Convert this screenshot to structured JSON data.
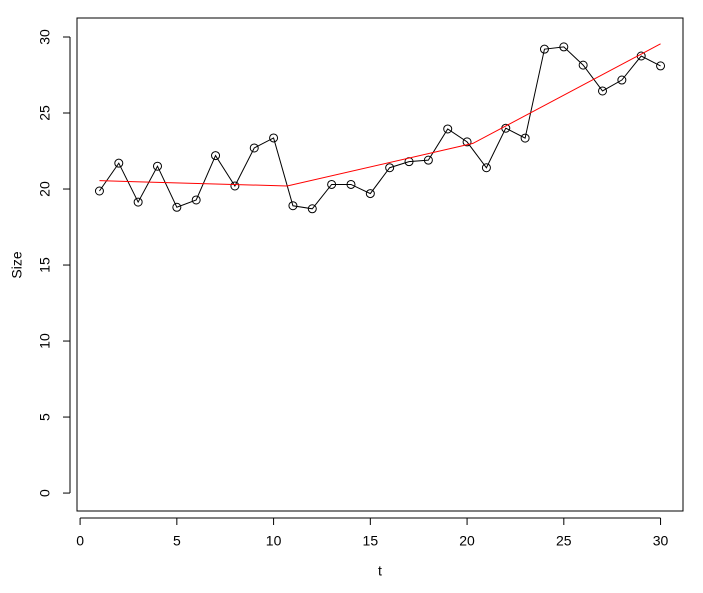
{
  "chart_data": {
    "type": "line",
    "xlabel": "t",
    "ylabel": "Size",
    "series": [
      {
        "x": [
          1,
          2,
          3,
          4,
          5,
          6,
          7,
          8,
          9,
          10,
          11,
          12,
          13,
          14,
          15,
          16,
          17,
          18,
          19,
          20,
          21,
          22,
          23,
          24,
          25,
          26,
          27,
          28,
          29,
          30
        ],
        "values": [
          19.87,
          21.7,
          19.14,
          21.5,
          18.8,
          19.28,
          22.2,
          20.2,
          22.7,
          23.36,
          18.9,
          18.7,
          20.3,
          20.3,
          19.7,
          21.4,
          21.8,
          21.9,
          23.95,
          23.1,
          21.4,
          24.0,
          23.35,
          29.2,
          29.35,
          28.15,
          26.45,
          27.17,
          28.75,
          28.1
        ],
        "color": "#000000",
        "marker": "circle"
      },
      {
        "x": [
          1,
          10.7,
          20.3,
          30
        ],
        "values": [
          20.55,
          20.2,
          23.0,
          29.55
        ],
        "color": "#ff0000"
      }
    ],
    "xlim": [
      -0.16,
      31.16
    ],
    "ylim": [
      -1.18,
      31.25
    ],
    "xticks": [
      0,
      5,
      10,
      15,
      20,
      25,
      30
    ],
    "yticks": [
      0,
      5,
      10,
      15,
      20,
      25,
      30
    ],
    "grid": false
  }
}
